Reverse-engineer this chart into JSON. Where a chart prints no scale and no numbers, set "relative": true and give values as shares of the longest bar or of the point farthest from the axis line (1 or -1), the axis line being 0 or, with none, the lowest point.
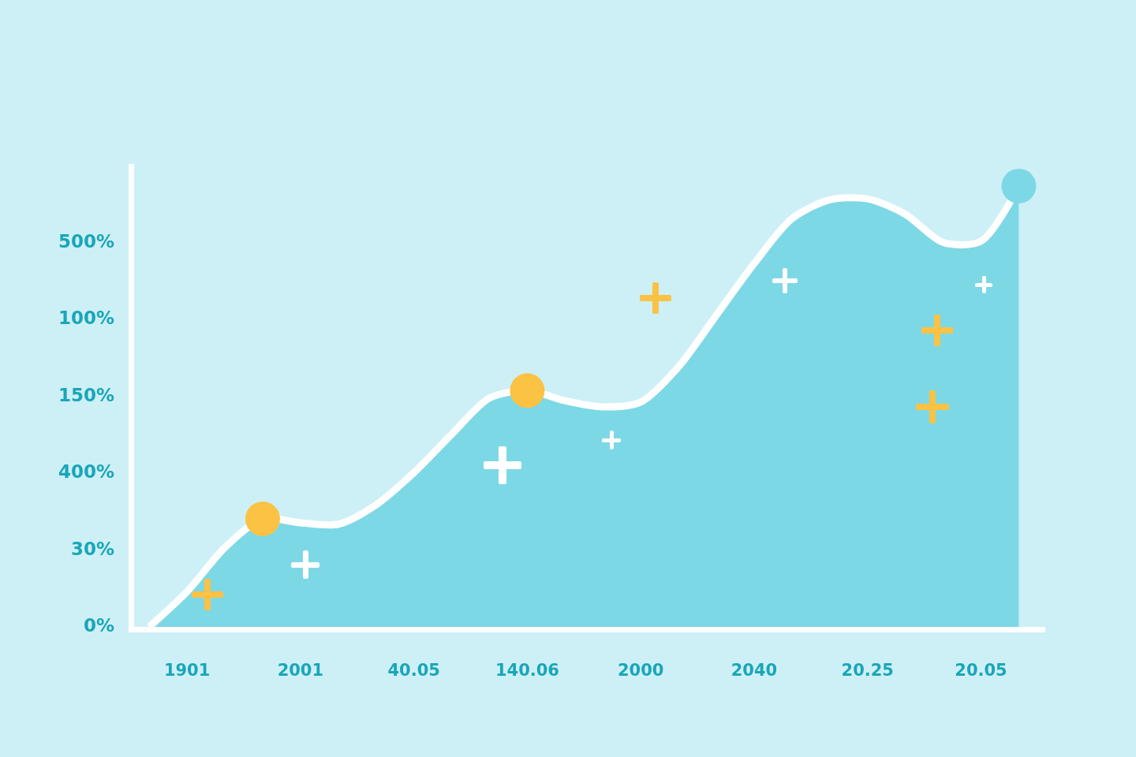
{
  "chart_data": {
    "type": "area",
    "relative": true,
    "categories": [
      null,
      "1901",
      null,
      null,
      "2001",
      null,
      null,
      "40.05",
      null,
      null,
      "140.06",
      null,
      null,
      "2000",
      null,
      null,
      "2040",
      null,
      null,
      "20.25",
      null,
      null,
      "20.05",
      null
    ],
    "series": [
      {
        "color": "#7dd8e6",
        "values": [
          0,
          0.08,
          0.18,
          0.245,
          0.236,
          0.233,
          0.277,
          0.35,
          0.437,
          0.519,
          0.536,
          0.513,
          0.499,
          0.51,
          0.59,
          0.707,
          0.824,
          0.926,
          0.969,
          0.971,
          0.936,
          0.872,
          0.875,
          1
        ]
      },
      {
        "type": "scatter",
        "values": [
          null,
          null,
          null,
          0.245,
          null,
          null,
          null,
          null,
          null,
          null,
          0.536,
          null,
          null,
          null,
          null,
          null,
          null,
          null,
          null,
          null,
          null,
          null,
          null,
          1
        ],
        "colors": [
          null,
          null,
          null,
          "#fbc244",
          null,
          null,
          null,
          null,
          null,
          null,
          "#fbc244",
          null,
          null,
          null,
          null,
          null,
          null,
          null,
          null,
          null,
          null,
          null,
          null,
          "#7dd8e6"
        ]
      }
    ],
    "annotations": [
      "500%",
      "100%",
      "150%",
      "400%",
      "30%",
      "0%"
    ],
    "grid": false
  }
}
